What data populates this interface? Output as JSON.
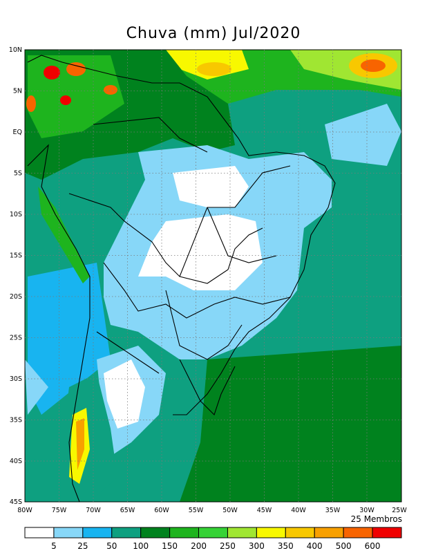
{
  "title": "Chuva (mm) Jul/2020",
  "members": "25 Membros",
  "lat_labels": [
    "10N",
    "5N",
    "EQ",
    "5S",
    "10S",
    "15S",
    "20S",
    "25S",
    "30S",
    "35S",
    "40S",
    "45S"
  ],
  "lon_labels": [
    "80W",
    "75W",
    "70W",
    "65W",
    "60W",
    "55W",
    "50W",
    "45W",
    "40W",
    "35W",
    "30W",
    "25W"
  ],
  "legend": {
    "colors": [
      "#ffffff",
      "#87d7f8",
      "#18b4f0",
      "#0ea080",
      "#00821e",
      "#1eb41e",
      "#36d236",
      "#a0e632",
      "#f8f800",
      "#f8c800",
      "#f8a000",
      "#f86400",
      "#f00000"
    ],
    "labels": [
      "5",
      "25",
      "50",
      "100",
      "150",
      "200",
      "250",
      "300",
      "350",
      "400",
      "500",
      "600"
    ]
  }
}
